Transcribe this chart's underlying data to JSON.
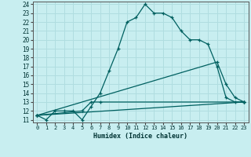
{
  "xlabel": "Humidex (Indice chaleur)",
  "bg_color": "#c8eef0",
  "line_color": "#006060",
  "grid_color": "#b0dde0",
  "xlim": [
    -0.5,
    23.5
  ],
  "ylim": [
    10.7,
    24.3
  ],
  "xticks": [
    0,
    1,
    2,
    3,
    4,
    5,
    6,
    7,
    8,
    9,
    10,
    11,
    12,
    13,
    14,
    15,
    16,
    17,
    18,
    19,
    20,
    21,
    22,
    23
  ],
  "yticks": [
    11,
    12,
    13,
    14,
    15,
    16,
    17,
    18,
    19,
    20,
    21,
    22,
    23,
    24
  ],
  "line1_x": [
    0,
    1,
    2,
    3,
    4,
    5,
    6,
    7,
    8,
    9,
    10,
    11,
    12,
    13,
    14,
    15,
    16,
    17,
    18,
    19,
    20,
    21,
    22,
    23
  ],
  "line1_y": [
    11.5,
    11,
    12,
    12,
    12,
    11,
    12.5,
    14,
    16.5,
    19,
    22,
    22.5,
    24,
    23,
    23,
    22.5,
    21,
    20,
    20,
    19.5,
    17,
    13.5,
    13,
    13
  ],
  "line2_x": [
    0,
    5,
    6,
    7,
    23
  ],
  "line2_y": [
    11.5,
    12,
    13,
    13,
    13
  ],
  "line3_x": [
    0,
    20,
    21,
    22,
    23
  ],
  "line3_y": [
    11.5,
    17.5,
    15,
    13.5,
    13
  ],
  "line4_x": [
    0,
    23
  ],
  "line4_y": [
    11.5,
    13
  ]
}
